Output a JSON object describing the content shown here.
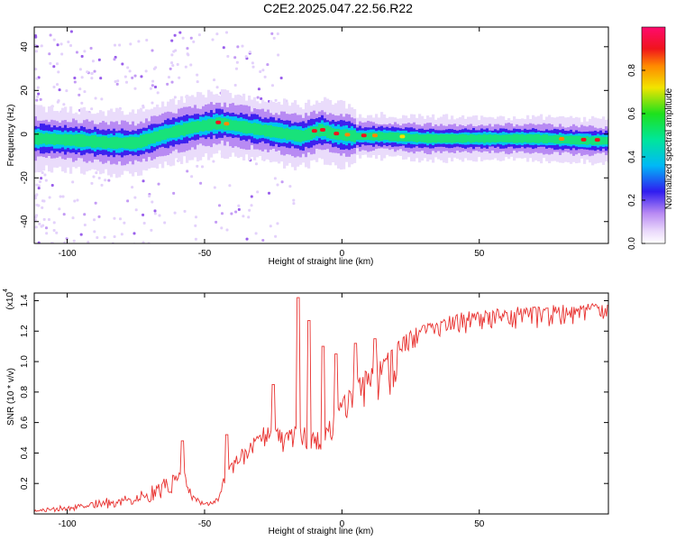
{
  "title": "C2E2.2025.047.22.56.R22",
  "chart_data": [
    {
      "type": "heatmap",
      "xlabel": "Height of straight line (km)",
      "ylabel": "Frequency (Hz)",
      "xlim": [
        -112,
        97
      ],
      "ylim": [
        -50,
        49
      ],
      "xticks": [
        -100,
        -50,
        0,
        50
      ],
      "yticks": [
        -40,
        -20,
        0,
        20,
        40
      ],
      "colorbar": {
        "label": "Normalized spectral amplitude",
        "range": [
          0,
          1
        ],
        "ticks": [
          "0.0",
          "0.2",
          "0.4",
          "0.6",
          "0.8"
        ]
      },
      "ridge": {
        "x": [
          -110,
          -95,
          -85,
          -75,
          -65,
          -55,
          -45,
          -35,
          -25,
          -15,
          -8,
          -3,
          5,
          15,
          30,
          50,
          70,
          90,
          97
        ],
        "y": [
          -2,
          -3,
          -4,
          -4,
          0,
          3,
          5,
          3,
          1,
          -1,
          2,
          0,
          -1,
          -1,
          -2,
          -2,
          -2,
          -3,
          -3
        ]
      },
      "grid": false
    },
    {
      "type": "line",
      "xlabel": "Height of straight line (km)",
      "ylabel": "SNR (10 * v/v)",
      "y_scale_label": "(x10",
      "y_scale_exp": "4",
      "xlim": [
        -112,
        97
      ],
      "ylim": [
        0,
        1.45
      ],
      "xticks": [
        -100,
        -50,
        0,
        50
      ],
      "yticks": [
        "0.2",
        "0.4",
        "0.6",
        "0.8",
        "1.0",
        "1.2",
        "1.4"
      ],
      "color": "#e8312f",
      "envelope_x": [
        -112,
        -100,
        -90,
        -80,
        -70,
        -60,
        -58,
        -55,
        -50,
        -45,
        -42,
        -35,
        -28,
        -20,
        -15,
        -10,
        -5,
        0,
        5,
        10,
        15,
        20,
        25,
        35,
        45,
        55,
        65,
        75,
        85,
        97
      ],
      "envelope_y": [
        0.02,
        0.04,
        0.06,
        0.08,
        0.12,
        0.22,
        0.35,
        0.14,
        0.06,
        0.1,
        0.3,
        0.45,
        0.58,
        0.55,
        0.6,
        0.52,
        0.6,
        0.75,
        0.88,
        0.95,
        1.02,
        1.12,
        1.2,
        1.28,
        1.32,
        1.34,
        1.35,
        1.36,
        1.37,
        1.38
      ],
      "spikes": [
        {
          "x": -58,
          "y": 0.48
        },
        {
          "x": -42,
          "y": 0.52
        },
        {
          "x": -25,
          "y": 0.85
        },
        {
          "x": -16,
          "y": 1.42
        },
        {
          "x": -12,
          "y": 1.27
        },
        {
          "x": -7,
          "y": 1.1
        },
        {
          "x": -2,
          "y": 1.05
        },
        {
          "x": 5,
          "y": 1.12
        },
        {
          "x": 12,
          "y": 1.15
        }
      ]
    }
  ]
}
